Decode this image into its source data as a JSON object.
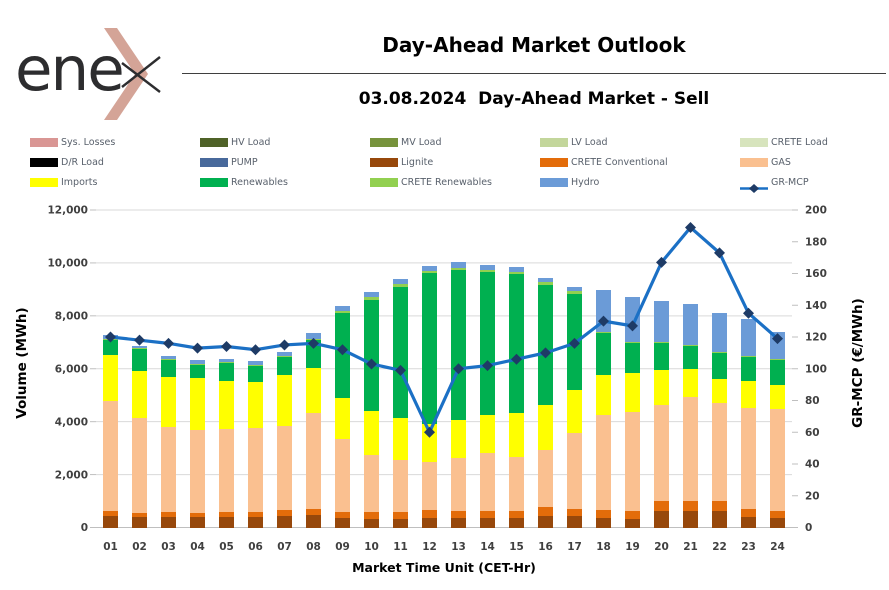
{
  "logo": {
    "text": "enex",
    "text_letters": "ene"
  },
  "header": {
    "title": "Day-Ahead Market Outlook",
    "subtitle": "03.08.2024  Day-Ahead Market - Sell"
  },
  "legend": [
    {
      "key": "sys_losses",
      "label": "Sys. Losses",
      "color": "#d99694",
      "type": "box"
    },
    {
      "key": "hv_load",
      "label": "HV Load",
      "color": "#4f6228",
      "type": "box"
    },
    {
      "key": "mv_load",
      "label": "MV Load",
      "color": "#77933c",
      "type": "box"
    },
    {
      "key": "lv_load",
      "label": "LV Load",
      "color": "#c3d69b",
      "type": "box"
    },
    {
      "key": "crete_load",
      "label": "CRETE Load",
      "color": "#d7e4bd",
      "type": "box"
    },
    {
      "key": "dr_load",
      "label": "D/R Load",
      "color": "#000000",
      "type": "box"
    },
    {
      "key": "pump",
      "label": "PUMP",
      "color": "#48699b",
      "type": "box"
    },
    {
      "key": "lignite",
      "label": "Lignite",
      "color": "#97480b",
      "type": "box"
    },
    {
      "key": "crete_conventional",
      "label": "CRETE Conventional",
      "color": "#e36c0a",
      "type": "box"
    },
    {
      "key": "gas",
      "label": "GAS",
      "color": "#fac090",
      "type": "box"
    },
    {
      "key": "imports",
      "label": "Imports",
      "color": "#ffff00",
      "type": "box"
    },
    {
      "key": "renewables",
      "label": "Renewables",
      "color": "#00b050",
      "type": "box"
    },
    {
      "key": "crete_renewables",
      "label": "CRETE Renewables",
      "color": "#92d050",
      "type": "box"
    },
    {
      "key": "hydro",
      "label": "Hydro",
      "color": "#6b9bd7",
      "type": "box"
    },
    {
      "key": "gr_mcp",
      "label": "GR-MCP",
      "color": "#1b70c5",
      "marker_color": "#1e3b66",
      "type": "line"
    }
  ],
  "chart_data": {
    "type": "bar",
    "combo": "stacked-bar-with-line",
    "title": "Day-Ahead Market Outlook",
    "xlabel": "Market Time Unit (CET-Hr)",
    "ylabel_left": "Volume (MWh)",
    "ylabel_right": "GR-MCP (€/MWh)",
    "ylim_left": [
      0,
      12000
    ],
    "ylim_right": [
      0,
      200
    ],
    "yticks_left": [
      "0",
      "2,000",
      "4,000",
      "6,000",
      "8,000",
      "10,000",
      "12,000"
    ],
    "yticks_right": [
      "0",
      "20",
      "40",
      "60",
      "80",
      "100",
      "120",
      "140",
      "160",
      "180",
      "200"
    ],
    "grid": "horizontal",
    "legend_position": "top",
    "categories": [
      "01",
      "02",
      "03",
      "04",
      "05",
      "06",
      "07",
      "08",
      "09",
      "10",
      "11",
      "12",
      "13",
      "14",
      "15",
      "16",
      "17",
      "18",
      "19",
      "20",
      "21",
      "22",
      "23",
      "24"
    ],
    "series": [
      {
        "name": "Lignite",
        "key": "lignite",
        "color": "#97480b",
        "values": [
          420,
          380,
          400,
          380,
          380,
          400,
          430,
          465,
          355,
          320,
          340,
          370,
          350,
          350,
          350,
          450,
          420,
          355,
          315,
          605,
          605,
          630,
          390,
          355
        ]
      },
      {
        "name": "CRETE Conventional",
        "key": "crete_conventional",
        "color": "#e36c0a",
        "values": [
          215,
          175,
          190,
          175,
          190,
          190,
          225,
          250,
          245,
          255,
          260,
          290,
          270,
          270,
          290,
          320,
          280,
          315,
          325,
          415,
          380,
          390,
          300,
          250
        ]
      },
      {
        "name": "GAS",
        "key": "gas",
        "color": "#fac090",
        "values": [
          4135,
          3575,
          3220,
          3135,
          3140,
          3160,
          3185,
          3605,
          2730,
          2170,
          1950,
          1830,
          2000,
          2180,
          2040,
          2160,
          2860,
          3580,
          3740,
          3600,
          3940,
          3670,
          3820,
          3870
        ]
      },
      {
        "name": "Imports",
        "key": "imports",
        "color": "#ffff00",
        "values": [
          1740,
          1800,
          1890,
          1950,
          1830,
          1760,
          1920,
          1700,
          1550,
          1640,
          1580,
          1410,
          1440,
          1450,
          1640,
          1700,
          1640,
          1510,
          1450,
          1330,
          1070,
          910,
          1040,
          920
        ]
      },
      {
        "name": "Renewables",
        "key": "renewables",
        "color": "#00b050",
        "values": [
          580,
          840,
          630,
          500,
          670,
          590,
          700,
          1070,
          3220,
          4220,
          4970,
          5710,
          5670,
          5400,
          5260,
          4540,
          3630,
          1600,
          1150,
          1030,
          880,
          1010,
          910,
          940
        ]
      },
      {
        "name": "CRETE Renewables",
        "key": "crete_renewables",
        "color": "#92d050",
        "values": [
          40,
          30,
          30,
          30,
          30,
          30,
          30,
          40,
          100,
          90,
          90,
          90,
          85,
          100,
          90,
          90,
          90,
          40,
          30,
          30,
          30,
          30,
          30,
          30
        ]
      },
      {
        "name": "Hydro",
        "key": "hydro",
        "color": "#6b9bd7",
        "values": [
          150,
          70,
          130,
          160,
          130,
          160,
          130,
          210,
          180,
          200,
          200,
          190,
          210,
          170,
          160,
          160,
          160,
          1580,
          1690,
          1550,
          1545,
          1460,
          1380,
          1035
        ]
      }
    ],
    "line_series": {
      "name": "GR-MCP",
      "color": "#1b70c5",
      "marker_color": "#1e3b66",
      "axis": "right",
      "values": [
        120,
        118,
        116,
        113,
        114,
        112,
        115,
        116,
        112,
        103,
        99,
        60,
        100,
        102,
        106,
        110,
        116,
        130,
        127,
        167,
        189,
        173,
        135,
        119
      ]
    }
  }
}
